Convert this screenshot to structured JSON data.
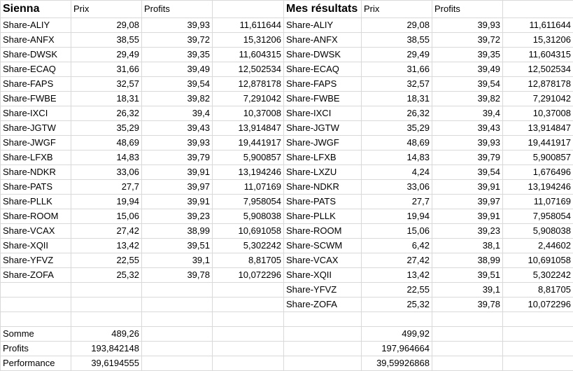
{
  "headers": {
    "left_title": "Sienna",
    "left_col1": "Prix",
    "left_col2": "Profits",
    "right_title": "Mes résultats",
    "right_col1": "Prix",
    "right_col2": "Profits"
  },
  "left_rows": [
    [
      "Share-ALIY",
      "29,08",
      "39,93",
      "11,611644"
    ],
    [
      "Share-ANFX",
      "38,55",
      "39,72",
      "15,31206"
    ],
    [
      "Share-DWSK",
      "29,49",
      "39,35",
      "11,604315"
    ],
    [
      "Share-ECAQ",
      "31,66",
      "39,49",
      "12,502534"
    ],
    [
      "Share-FAPS",
      "32,57",
      "39,54",
      "12,878178"
    ],
    [
      "Share-FWBE",
      "18,31",
      "39,82",
      "7,291042"
    ],
    [
      "Share-IXCI",
      "26,32",
      "39,4",
      "10,37008"
    ],
    [
      "Share-JGTW",
      "35,29",
      "39,43",
      "13,914847"
    ],
    [
      "Share-JWGF",
      "48,69",
      "39,93",
      "19,441917"
    ],
    [
      "Share-LFXB",
      "14,83",
      "39,79",
      "5,900857"
    ],
    [
      "Share-NDKR",
      "33,06",
      "39,91",
      "13,194246"
    ],
    [
      "Share-PATS",
      "27,7",
      "39,97",
      "11,07169"
    ],
    [
      "Share-PLLK",
      "19,94",
      "39,91",
      "7,958054"
    ],
    [
      "Share-ROOM",
      "15,06",
      "39,23",
      "5,908038"
    ],
    [
      "Share-VCAX",
      "27,42",
      "38,99",
      "10,691058"
    ],
    [
      "Share-XQII",
      "13,42",
      "39,51",
      "5,302242"
    ],
    [
      "Share-YFVZ",
      "22,55",
      "39,1",
      "8,81705"
    ],
    [
      "Share-ZOFA",
      "25,32",
      "39,78",
      "10,072296"
    ],
    [
      "",
      "",
      "",
      ""
    ],
    [
      "",
      "",
      "",
      ""
    ],
    [
      "",
      "",
      "",
      ""
    ],
    [
      "Somme",
      "489,26",
      "",
      ""
    ],
    [
      "Profits",
      "193,842148",
      "",
      ""
    ],
    [
      "Performance",
      "39,6194555",
      "",
      ""
    ]
  ],
  "right_rows": [
    [
      "Share-ALIY",
      "29,08",
      "39,93",
      "11,611644"
    ],
    [
      "Share-ANFX",
      "38,55",
      "39,72",
      "15,31206"
    ],
    [
      "Share-DWSK",
      "29,49",
      "39,35",
      "11,604315"
    ],
    [
      "Share-ECAQ",
      "31,66",
      "39,49",
      "12,502534"
    ],
    [
      "Share-FAPS",
      "32,57",
      "39,54",
      "12,878178"
    ],
    [
      "Share-FWBE",
      "18,31",
      "39,82",
      "7,291042"
    ],
    [
      "Share-IXCI",
      "26,32",
      "39,4",
      "10,37008"
    ],
    [
      "Share-JGTW",
      "35,29",
      "39,43",
      "13,914847"
    ],
    [
      "Share-JWGF",
      "48,69",
      "39,93",
      "19,441917"
    ],
    [
      "Share-LFXB",
      "14,83",
      "39,79",
      "5,900857"
    ],
    [
      "Share-LXZU",
      "4,24",
      "39,54",
      "1,676496"
    ],
    [
      "Share-NDKR",
      "33,06",
      "39,91",
      "13,194246"
    ],
    [
      "Share-PATS",
      "27,7",
      "39,97",
      "11,07169"
    ],
    [
      "Share-PLLK",
      "19,94",
      "39,91",
      "7,958054"
    ],
    [
      "Share-ROOM",
      "15,06",
      "39,23",
      "5,908038"
    ],
    [
      "Share-SCWM",
      "6,42",
      "38,1",
      "2,44602"
    ],
    [
      "Share-VCAX",
      "27,42",
      "38,99",
      "10,691058"
    ],
    [
      "Share-XQII",
      "13,42",
      "39,51",
      "5,302242"
    ],
    [
      "Share-YFVZ",
      "22,55",
      "39,1",
      "8,81705"
    ],
    [
      "Share-ZOFA",
      "25,32",
      "39,78",
      "10,072296"
    ],
    [
      "",
      "",
      "",
      ""
    ],
    [
      "",
      "499,92",
      "",
      ""
    ],
    [
      "",
      "197,964664",
      "",
      ""
    ],
    [
      "",
      "39,59926868",
      "",
      ""
    ]
  ]
}
